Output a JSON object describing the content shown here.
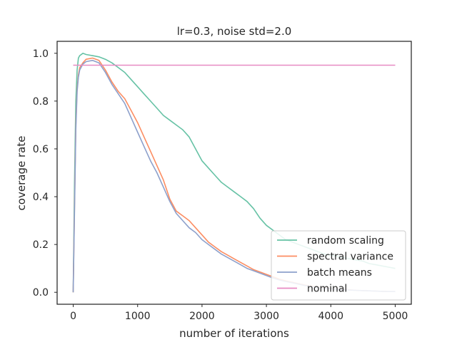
{
  "chart_data": {
    "type": "line",
    "title": "lr=0.3, noise std=2.0",
    "xlabel": "number of iterations",
    "ylabel": "coverage rate",
    "xlim": [
      -250,
      5250
    ],
    "ylim": [
      -0.05,
      1.05
    ],
    "xticks": [
      0,
      1000,
      2000,
      3000,
      4000,
      5000
    ],
    "xtick_labels": [
      "0",
      "1000",
      "2000",
      "3000",
      "4000",
      "5000"
    ],
    "yticks": [
      0.0,
      0.2,
      0.4,
      0.6,
      0.8,
      1.0
    ],
    "ytick_labels": [
      "0.0",
      "0.2",
      "0.4",
      "0.6",
      "0.8",
      "1.0"
    ],
    "grid": false,
    "legend_position": "lower-right",
    "series": [
      {
        "name": "random scaling",
        "color": "#66c2a5",
        "x": [
          0,
          20,
          40,
          60,
          80,
          100,
          150,
          200,
          300,
          400,
          500,
          600,
          700,
          800,
          900,
          1000,
          1100,
          1200,
          1300,
          1400,
          1500,
          1600,
          1700,
          1800,
          1900,
          2000,
          2100,
          2200,
          2300,
          2400,
          2500,
          2600,
          2700,
          2800,
          2900,
          3000,
          3100,
          3200,
          3300,
          3400,
          3500,
          3600,
          3700,
          3800,
          3900,
          4000,
          4100,
          4200,
          4300,
          4400,
          4500,
          4600,
          4700,
          4800,
          4900,
          5000
        ],
        "y": [
          0.0,
          0.45,
          0.8,
          0.93,
          0.98,
          0.99,
          1.0,
          0.995,
          0.99,
          0.985,
          0.975,
          0.96,
          0.94,
          0.92,
          0.89,
          0.86,
          0.83,
          0.8,
          0.77,
          0.74,
          0.72,
          0.7,
          0.68,
          0.65,
          0.6,
          0.55,
          0.52,
          0.49,
          0.46,
          0.44,
          0.42,
          0.4,
          0.38,
          0.35,
          0.31,
          0.28,
          0.26,
          0.24,
          0.22,
          0.21,
          0.2,
          0.19,
          0.18,
          0.17,
          0.16,
          0.155,
          0.15,
          0.145,
          0.14,
          0.135,
          0.13,
          0.12,
          0.115,
          0.11,
          0.105,
          0.1
        ]
      },
      {
        "name": "spectral variance",
        "color": "#fc8d62",
        "x": [
          0,
          20,
          40,
          60,
          80,
          100,
          150,
          200,
          300,
          400,
          500,
          600,
          700,
          800,
          900,
          1000,
          1100,
          1200,
          1300,
          1400,
          1500,
          1600,
          1700,
          1800,
          1900,
          2000,
          2100,
          2200,
          2300,
          2400,
          2500,
          2600,
          2700,
          2800,
          2900,
          3000,
          3100,
          3200,
          3300,
          3400,
          3500,
          3600,
          3700,
          3800,
          3900,
          4000,
          4100,
          4200,
          4300,
          4400,
          4500,
          4600,
          4700,
          4800,
          4900,
          5000
        ],
        "y": [
          0.0,
          0.35,
          0.7,
          0.85,
          0.91,
          0.94,
          0.96,
          0.975,
          0.98,
          0.97,
          0.93,
          0.88,
          0.84,
          0.81,
          0.76,
          0.71,
          0.65,
          0.59,
          0.53,
          0.47,
          0.39,
          0.34,
          0.32,
          0.3,
          0.27,
          0.24,
          0.21,
          0.19,
          0.17,
          0.155,
          0.14,
          0.125,
          0.11,
          0.095,
          0.085,
          0.075,
          0.065,
          0.055,
          0.048,
          0.042,
          0.036,
          0.03,
          0.026,
          0.022,
          0.019,
          0.016,
          0.014,
          0.012,
          0.01,
          0.008,
          0.007,
          0.006,
          0.005,
          0.004,
          0.003,
          0.003
        ]
      },
      {
        "name": "batch means",
        "color": "#8da0cb",
        "x": [
          0,
          20,
          40,
          60,
          80,
          100,
          150,
          200,
          300,
          400,
          500,
          600,
          700,
          800,
          900,
          1000,
          1100,
          1200,
          1300,
          1400,
          1500,
          1600,
          1700,
          1800,
          1900,
          2000,
          2100,
          2200,
          2300,
          2400,
          2500,
          2600,
          2700,
          2800,
          2900,
          3000,
          3100,
          3200,
          3300,
          3400,
          3500,
          3600,
          3700,
          3800,
          3900,
          4000,
          4100,
          4200,
          4300,
          4400,
          4500,
          4600,
          4700,
          4800,
          4900,
          5000
        ],
        "y": [
          0.0,
          0.33,
          0.68,
          0.84,
          0.9,
          0.93,
          0.955,
          0.965,
          0.97,
          0.96,
          0.92,
          0.87,
          0.83,
          0.79,
          0.73,
          0.67,
          0.61,
          0.55,
          0.5,
          0.44,
          0.38,
          0.33,
          0.3,
          0.27,
          0.25,
          0.22,
          0.2,
          0.18,
          0.16,
          0.145,
          0.13,
          0.115,
          0.1,
          0.09,
          0.08,
          0.07,
          0.06,
          0.052,
          0.045,
          0.04,
          0.034,
          0.028,
          0.024,
          0.02,
          0.017,
          0.015,
          0.013,
          0.011,
          0.009,
          0.008,
          0.007,
          0.006,
          0.005,
          0.004,
          0.003,
          0.003
        ]
      },
      {
        "name": "nominal",
        "color": "#e78ac3",
        "x": [
          0,
          5000
        ],
        "y": [
          0.95,
          0.95
        ]
      }
    ]
  }
}
